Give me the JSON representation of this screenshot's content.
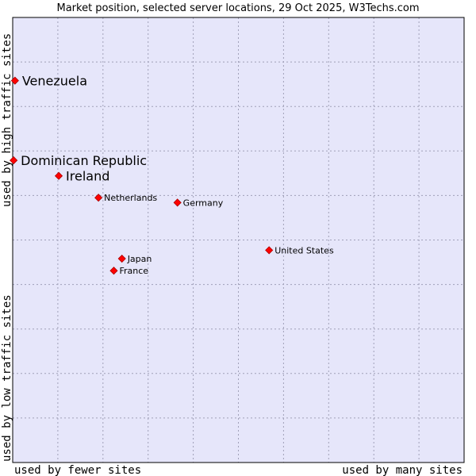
{
  "chart_data": {
    "type": "scatter",
    "title": "Market position, selected server locations, 29 Oct 2025, W3Techs.com",
    "xlabel_left": "used by fewer sites",
    "xlabel_right": "used by many sites",
    "ylabel_bottom": "used by low traffic sites",
    "ylabel_top": "used by high traffic sites",
    "xlim": [
      0,
      100
    ],
    "ylim": [
      0,
      100
    ],
    "grid": true,
    "points": [
      {
        "label": "Venezuela",
        "x": 0.5,
        "y": 85.8,
        "emphasis": true
      },
      {
        "label": "Dominican Republic",
        "x": 0.2,
        "y": 67.9,
        "emphasis": true
      },
      {
        "label": "Ireland",
        "x": 10.2,
        "y": 64.4,
        "emphasis": true
      },
      {
        "label": "Netherlands",
        "x": 19.0,
        "y": 59.5,
        "emphasis": false
      },
      {
        "label": "Germany",
        "x": 36.5,
        "y": 58.4,
        "emphasis": false
      },
      {
        "label": "United States",
        "x": 56.8,
        "y": 47.7,
        "emphasis": false
      },
      {
        "label": "Japan",
        "x": 24.2,
        "y": 45.8,
        "emphasis": false
      },
      {
        "label": "France",
        "x": 22.4,
        "y": 43.1,
        "emphasis": false
      }
    ],
    "colors": {
      "plot_bg": "#e6e6fa",
      "grid": "#a0a0b8",
      "marker": "#ff0000",
      "marker_edge": "#aa0000",
      "frame": "#000000"
    }
  }
}
